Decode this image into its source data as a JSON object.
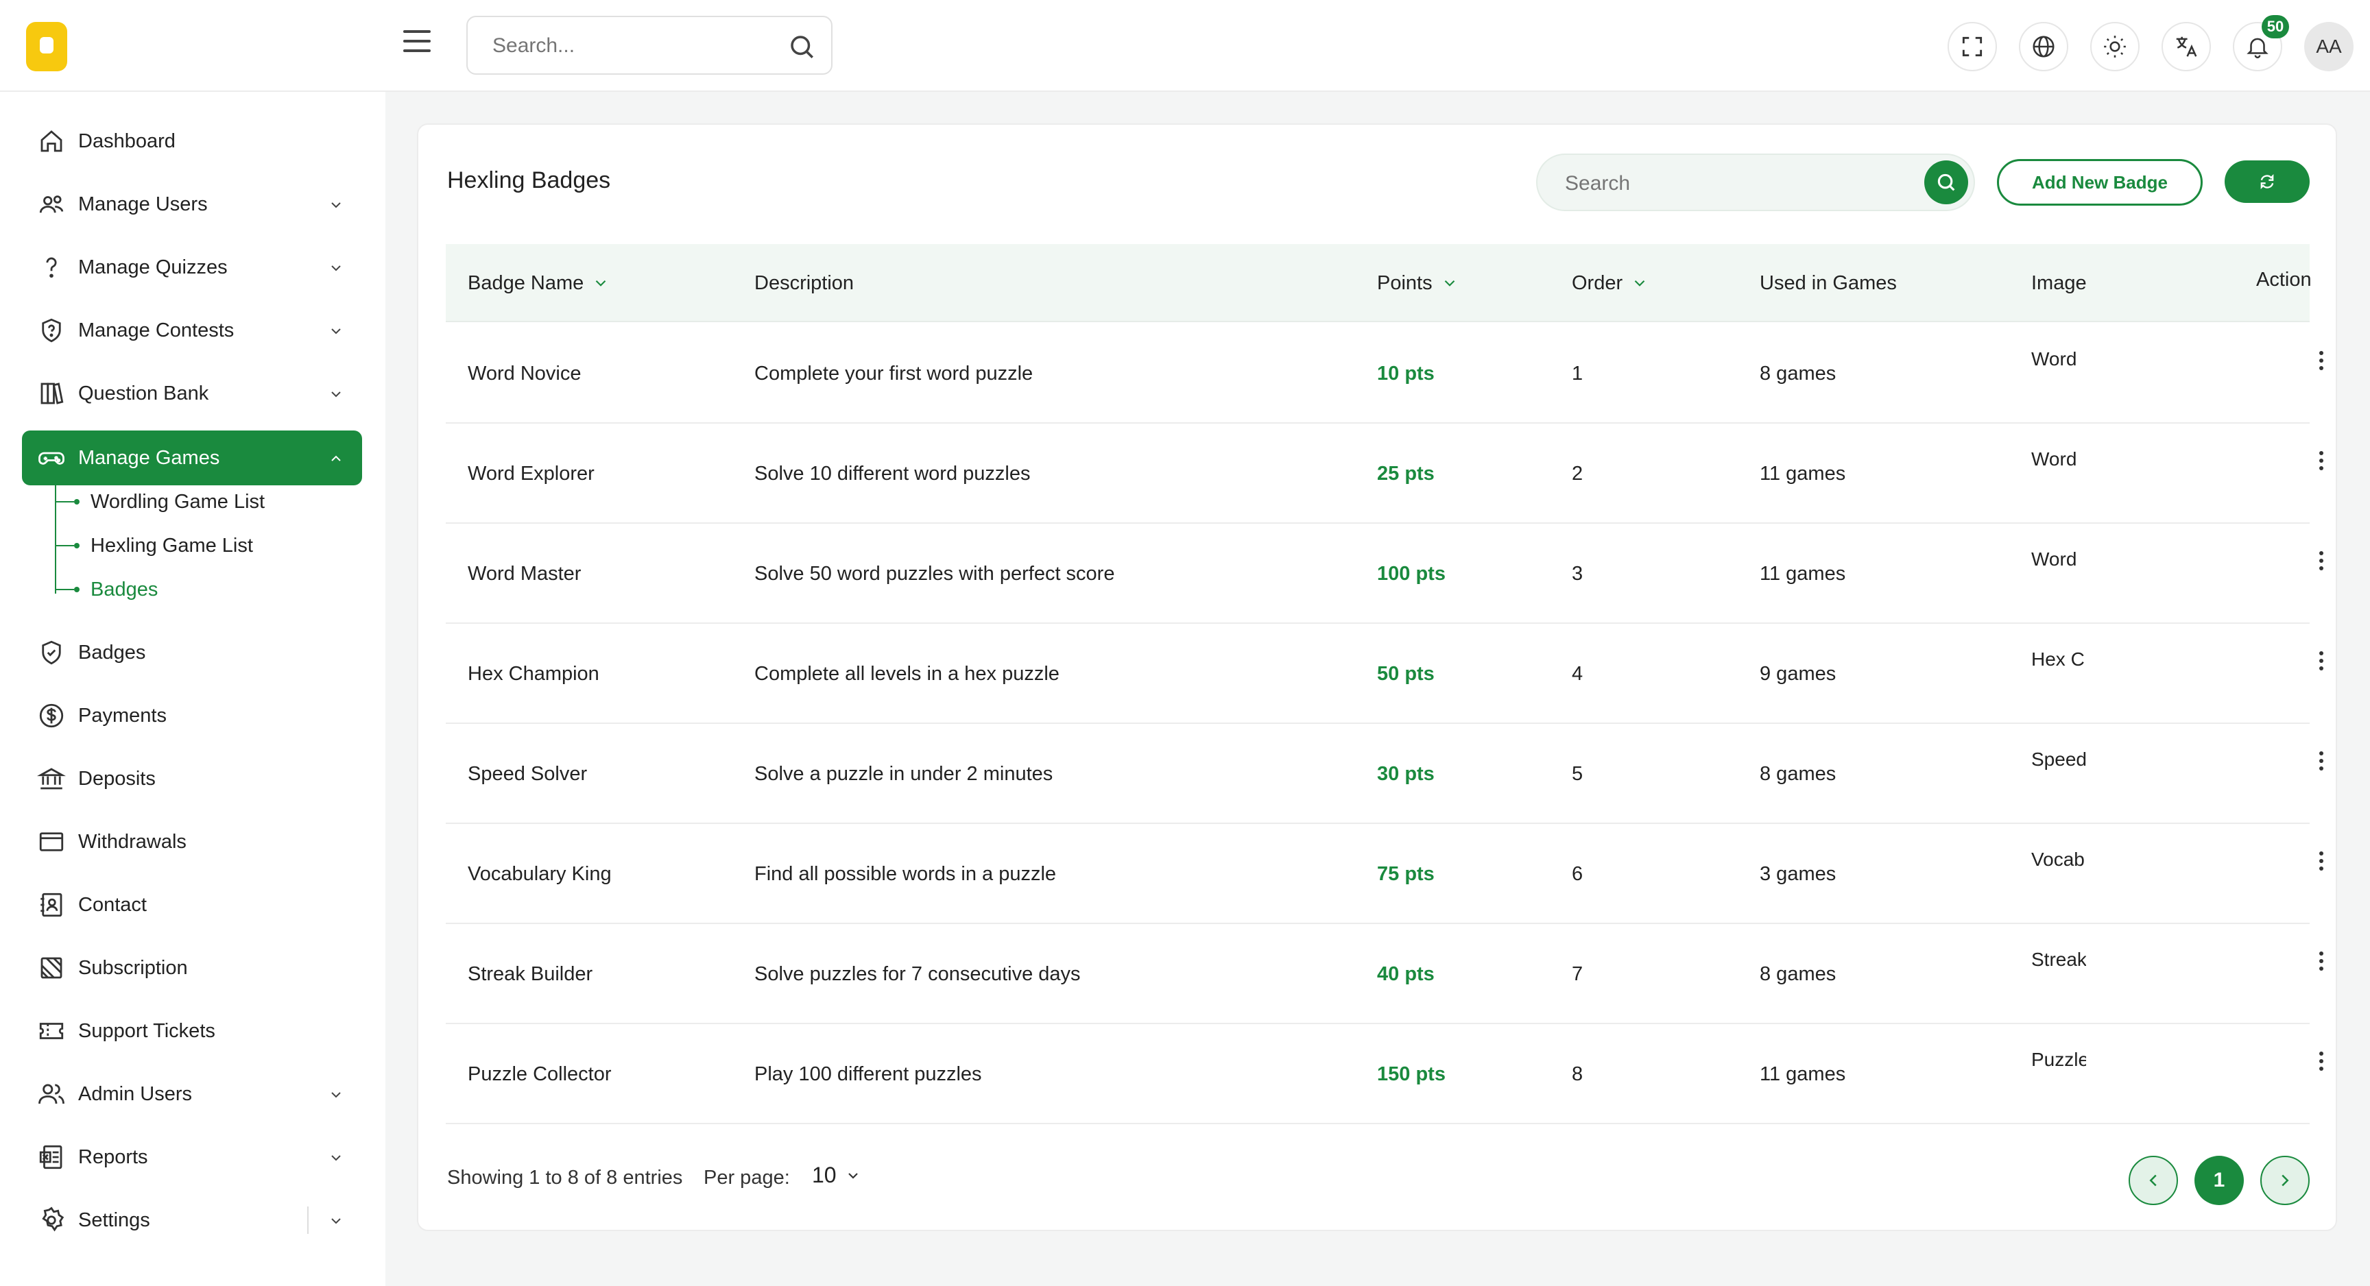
{
  "header": {
    "search_placeholder": "Search...",
    "notification_count": "50",
    "avatar_initials": "AA"
  },
  "sidebar": {
    "items": [
      {
        "label": "Dashboard",
        "icon": "home-icon"
      },
      {
        "label": "Manage Users",
        "icon": "users-icon"
      },
      {
        "label": "Manage Quizzes",
        "icon": "question-icon"
      },
      {
        "label": "Manage Contests",
        "icon": "contest-icon"
      },
      {
        "label": "Question Bank",
        "icon": "book-icon"
      },
      {
        "label": "Manage Games",
        "icon": "gamepad-icon"
      },
      {
        "label": "Badges",
        "icon": "shield-icon"
      },
      {
        "label": "Payments",
        "icon": "dollar-icon"
      },
      {
        "label": "Deposits",
        "icon": "bank-icon"
      },
      {
        "label": "Withdrawals",
        "icon": "wallet-icon"
      },
      {
        "label": "Contact",
        "icon": "contact-icon"
      },
      {
        "label": "Subscription",
        "icon": "subscription-icon"
      },
      {
        "label": "Support Tickets",
        "icon": "ticket-icon"
      },
      {
        "label": "Admin Users",
        "icon": "admin-users-icon"
      },
      {
        "label": "Reports",
        "icon": "report-icon"
      },
      {
        "label": "Settings",
        "icon": "gear-icon"
      }
    ],
    "sub_items": [
      {
        "label": "Wordling Game List"
      },
      {
        "label": "Hexling Game List"
      },
      {
        "label": "Badges"
      }
    ]
  },
  "card": {
    "title": "Hexling Badges",
    "search_placeholder": "Search",
    "add_button": "Add New Badge"
  },
  "table": {
    "headers": {
      "name": "Badge Name",
      "description": "Description",
      "points": "Points",
      "order": "Order",
      "used": "Used in Games",
      "image": "Image",
      "action": "Action"
    },
    "rows": [
      {
        "name": "Word Novice",
        "description": "Complete your first word puzzle",
        "points": "10 pts",
        "order": "1",
        "used": "8 games",
        "image": "Word"
      },
      {
        "name": "Word Explorer",
        "description": "Solve 10 different word puzzles",
        "points": "25 pts",
        "order": "2",
        "used": "11 games",
        "image": "Word"
      },
      {
        "name": "Word Master",
        "description": "Solve 50 word puzzles with perfect score",
        "points": "100 pts",
        "order": "3",
        "used": "11 games",
        "image": "Word"
      },
      {
        "name": "Hex Champion",
        "description": "Complete all levels in a hex puzzle",
        "points": "50 pts",
        "order": "4",
        "used": "9 games",
        "image": "Hex C"
      },
      {
        "name": "Speed Solver",
        "description": "Solve a puzzle in under 2 minutes",
        "points": "30 pts",
        "order": "5",
        "used": "8 games",
        "image": "Speed"
      },
      {
        "name": "Vocabulary King",
        "description": "Find all possible words in a puzzle",
        "points": "75 pts",
        "order": "6",
        "used": "3 games",
        "image": "Vocab"
      },
      {
        "name": "Streak Builder",
        "description": "Solve puzzles for 7 consecutive days",
        "points": "40 pts",
        "order": "7",
        "used": "8 games",
        "image": "Streak"
      },
      {
        "name": "Puzzle Collector",
        "description": "Play 100 different puzzles",
        "points": "150 pts",
        "order": "8",
        "used": "11 games",
        "image": "Puzzle"
      }
    ]
  },
  "footer": {
    "showing": "Showing 1 to 8 of 8 entries",
    "per_page_label": "Per page:",
    "per_page_value": "10",
    "current_page": "1"
  },
  "colors": {
    "accent": "#1a8a3e",
    "logo": "#f7c90f"
  }
}
